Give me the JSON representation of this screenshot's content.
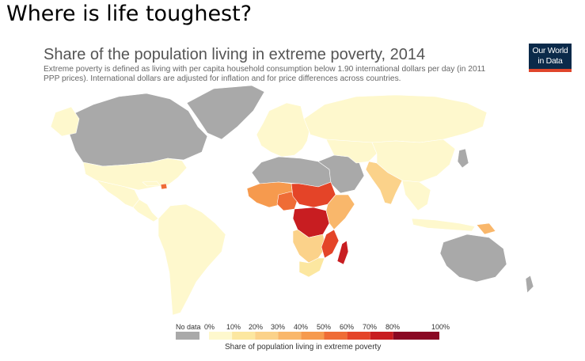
{
  "slide_title": "Where is life toughest?",
  "chart_data": {
    "type": "choropleth-map",
    "title": "Share of the population living in extreme poverty, 2014",
    "subtitle_line1": "Extreme poverty is defined as living with per capita household consumption below 1.90 international dollars per day (in 2011",
    "subtitle_line2": "PPP prices). International dollars are adjusted for inflation and for price differences across countries.",
    "logo_line1": "Our World",
    "logo_line2": "in Data",
    "legend": {
      "title": "Share of population living in extreme poverty",
      "no_data_label": "No data",
      "no_data_color": "#a9a9a9",
      "tick_labels": [
        "0%",
        "10%",
        "20%",
        "30%",
        "40%",
        "50%",
        "60%",
        "70%",
        "80%",
        "100%"
      ],
      "bins": [
        {
          "from": 0,
          "to": 10,
          "color": "#fef8cd"
        },
        {
          "from": 10,
          "to": 20,
          "color": "#fce7a0"
        },
        {
          "from": 20,
          "to": 30,
          "color": "#fbd28a"
        },
        {
          "from": 30,
          "to": 40,
          "color": "#f9b76b"
        },
        {
          "from": 40,
          "to": 50,
          "color": "#f69a4e"
        },
        {
          "from": 50,
          "to": 60,
          "color": "#ef6c36"
        },
        {
          "from": 60,
          "to": 70,
          "color": "#e44428"
        },
        {
          "from": 70,
          "to": 80,
          "color": "#c81d21"
        },
        {
          "from": 80,
          "to": 100,
          "color": "#8a0823"
        }
      ]
    },
    "regions": [
      {
        "name": "Canada",
        "value": null
      },
      {
        "name": "United States",
        "value": 1
      },
      {
        "name": "Greenland",
        "value": null
      },
      {
        "name": "Mexico",
        "value": 3
      },
      {
        "name": "Central America",
        "value": 8
      },
      {
        "name": "Haiti",
        "value": 54
      },
      {
        "name": "South America",
        "value": 4
      },
      {
        "name": "Europe",
        "value": 0.5
      },
      {
        "name": "Russia",
        "value": 0.1
      },
      {
        "name": "North Africa",
        "value": null
      },
      {
        "name": "Middle East",
        "value": null
      },
      {
        "name": "Central Asia",
        "value": 2
      },
      {
        "name": "China",
        "value": 1.5
      },
      {
        "name": "India",
        "value": 21
      },
      {
        "name": "Southeast Asia",
        "value": 7
      },
      {
        "name": "Papua New Guinea",
        "value": 38
      },
      {
        "name": "Australia",
        "value": null
      },
      {
        "name": "West Africa",
        "value": 45
      },
      {
        "name": "Nigeria",
        "value": 53
      },
      {
        "name": "Central Africa",
        "value": 62
      },
      {
        "name": "DR Congo",
        "value": 77
      },
      {
        "name": "East Africa",
        "value": 38
      },
      {
        "name": "Southern Africa",
        "value": 25
      },
      {
        "name": "Mozambique",
        "value": 68
      },
      {
        "name": "South Africa",
        "value": 18
      },
      {
        "name": "Madagascar",
        "value": 77
      }
    ]
  }
}
